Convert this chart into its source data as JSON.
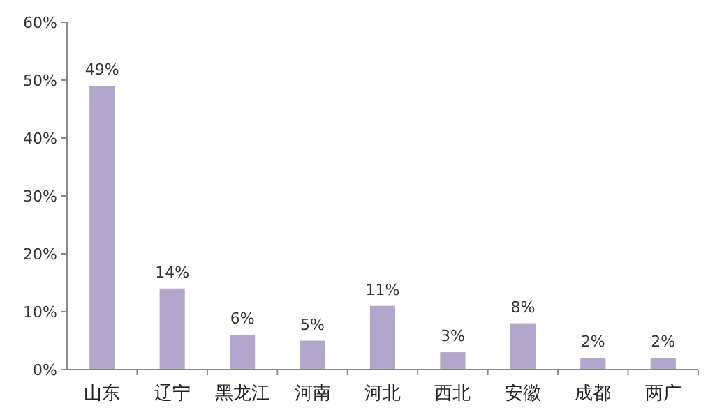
{
  "chart_data": {
    "type": "bar",
    "categories": [
      "山东",
      "辽宁",
      "黑龙江",
      "河南",
      "河北",
      "西北",
      "安徽",
      "成都",
      "两广"
    ],
    "values": [
      49,
      14,
      6,
      5,
      11,
      3,
      8,
      2,
      2
    ],
    "value_labels": [
      "49%",
      "14%",
      "6%",
      "5%",
      "11%",
      "3%",
      "8%",
      "2%",
      "2%"
    ],
    "color": "#b2a6cc",
    "ylim": [
      0,
      60
    ],
    "yticks": [
      {
        "value": 0,
        "label": "0%"
      },
      {
        "value": 10,
        "label": "10%"
      },
      {
        "value": 20,
        "label": "20%"
      },
      {
        "value": 30,
        "label": "30%"
      },
      {
        "value": 40,
        "label": "40%"
      },
      {
        "value": 50,
        "label": "50%"
      },
      {
        "value": 60,
        "label": "60%"
      }
    ],
    "grid": false
  }
}
